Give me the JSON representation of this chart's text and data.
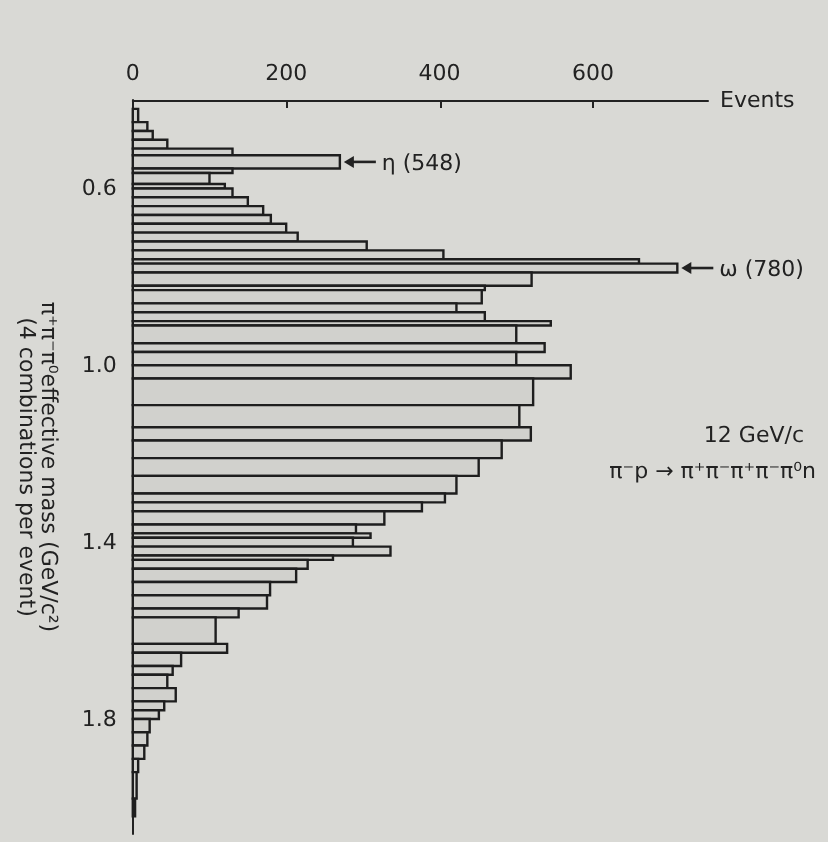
{
  "chart_data": {
    "type": "histogram",
    "orientation": "horizontal",
    "title": "π⁻p → π⁺π⁻π⁺π⁻π⁰n",
    "subtitle": "12 GeV/c",
    "xlabel": "Events",
    "ylabel": "π⁺π⁻π⁰effective mass (GeV/c²)\n(4 combinations per event)",
    "bins": [
      0.42,
      0.45,
      0.47,
      0.49,
      0.51,
      0.525,
      0.555,
      0.565,
      0.59,
      0.6,
      0.62,
      0.64,
      0.66,
      0.68,
      0.7,
      0.72,
      0.74,
      0.76,
      0.77,
      0.79,
      0.82,
      0.83,
      0.86,
      0.88,
      0.9,
      0.91,
      0.95,
      0.97,
      1.0,
      1.03,
      1.09,
      1.14,
      1.17,
      1.21,
      1.25,
      1.29,
      1.31,
      1.33,
      1.36,
      1.38,
      1.39,
      1.41,
      1.43,
      1.44,
      1.46,
      1.49,
      1.52,
      1.55,
      1.57,
      1.63,
      1.65,
      1.68,
      1.7,
      1.73,
      1.76,
      1.78,
      1.8,
      1.83,
      1.86,
      1.89,
      1.92,
      1.98,
      2.02
    ],
    "values": [
      7,
      19,
      26,
      45,
      130,
      270,
      130,
      100,
      120,
      130,
      150,
      170,
      180,
      200,
      215,
      305,
      405,
      660,
      710,
      520,
      459,
      455,
      422,
      459,
      545,
      500,
      537,
      500,
      571,
      522,
      504,
      519,
      481,
      451,
      422,
      407,
      377,
      328,
      291,
      310,
      287,
      336,
      261,
      228,
      213,
      179,
      175,
      138,
      108,
      123,
      63,
      52,
      45,
      56,
      41,
      34,
      22,
      19,
      15,
      7,
      5,
      3
    ],
    "color": "#1e1e1e",
    "xlim": [
      0,
      750
    ],
    "xticks": [
      0,
      200,
      400,
      600
    ],
    "ylim": [
      2.06,
      0.4
    ],
    "yticks": [
      0.6,
      {
        "value": 1.0,
        "label": "1.0"
      },
      1.4,
      1.8
    ],
    "annotations": [
      {
        "text": "η (548)",
        "x": 270,
        "y": 0.54
      },
      {
        "text": "ω (780)",
        "x": 710,
        "y": 0.78
      }
    ]
  }
}
